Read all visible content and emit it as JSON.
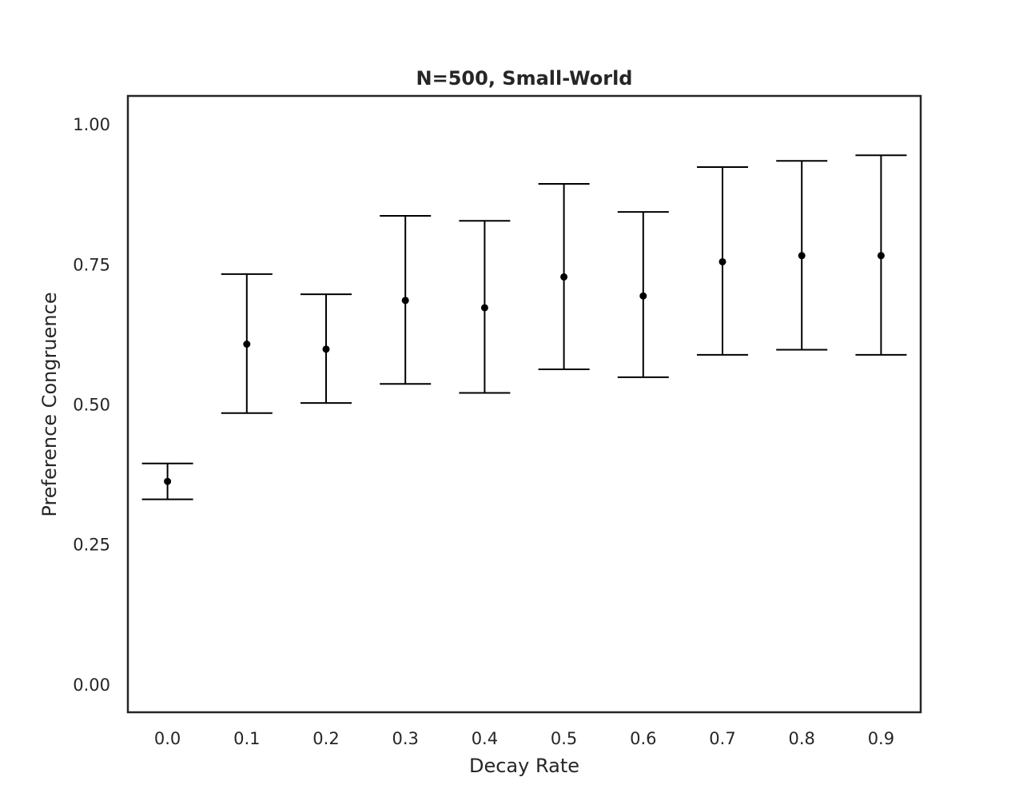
{
  "chart_data": {
    "type": "errorbar",
    "title": "N=500, Small-World",
    "xlabel": "Decay Rate",
    "ylabel": "Preference Congruence",
    "categories": [
      "0.0",
      "0.1",
      "0.2",
      "0.3",
      "0.4",
      "0.5",
      "0.6",
      "0.7",
      "0.8",
      "0.9"
    ],
    "y_ticks": [
      "0.00",
      "0.25",
      "0.50",
      "0.75",
      "1.00"
    ],
    "ylim": [
      -0.05,
      1.05
    ],
    "grid": false,
    "legend": "none",
    "series": [
      {
        "values": [
          0.362,
          0.607,
          0.598,
          0.685,
          0.672,
          0.727,
          0.693,
          0.754,
          0.765,
          0.765
        ],
        "lower": [
          0.33,
          0.484,
          0.502,
          0.536,
          0.52,
          0.562,
          0.548,
          0.588,
          0.597,
          0.588
        ],
        "upper": [
          0.394,
          0.732,
          0.696,
          0.836,
          0.827,
          0.893,
          0.843,
          0.923,
          0.934,
          0.944
        ]
      }
    ],
    "colors": {
      "marker": "#000000",
      "errorbar": "#000000",
      "frame": "#262626",
      "text": "#262626"
    }
  }
}
